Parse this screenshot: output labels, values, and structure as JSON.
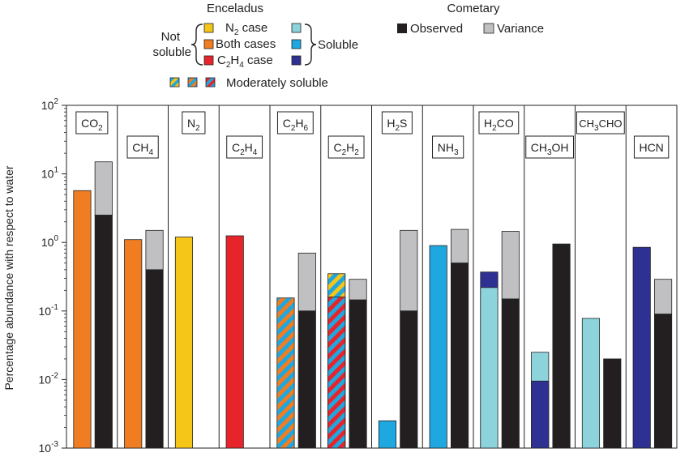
{
  "legend": {
    "enceladus_title": "Enceladus",
    "cometary_title": "Cometary",
    "not_soluble_1": "Not",
    "not_soluble_2": "soluble",
    "soluble": "Soluble",
    "n2_case": "N",
    "n2_case_sub": "2",
    "n2_case_tail": " case",
    "both_cases": "Both cases",
    "c2h4_case_a": "C",
    "c2h4_case_sub1": "2",
    "c2h4_case_b": "H",
    "c2h4_case_sub2": "4",
    "c2h4_case_tail": " case",
    "moderately_soluble": "Moderately soluble",
    "observed": "Observed",
    "variance": "Variance"
  },
  "colors": {
    "n2_case": "#f5c518",
    "both_cases": "#f07d22",
    "c2h4_case": "#e8242b",
    "soluble_n2": "#8dd3dc",
    "soluble_both": "#1fa7e0",
    "soluble_c2h4": "#2e3192",
    "observed": "#231f20",
    "variance": "#c0c0c2"
  },
  "chart_data": {
    "type": "bar",
    "ylabel": "Percentage abundance with respect to water",
    "yscale": "log",
    "ylim": [
      0.001,
      100
    ],
    "yticks": [
      {
        "value": 100,
        "base": "10",
        "exp": "2"
      },
      {
        "value": 10,
        "base": "10",
        "exp": "1"
      },
      {
        "value": 1,
        "base": "10",
        "exp": "0"
      },
      {
        "value": 0.1,
        "base": "10",
        "exp": "-1"
      },
      {
        "value": 0.01,
        "base": "10",
        "exp": "-2"
      },
      {
        "value": 0.001,
        "base": "10",
        "exp": "-3"
      }
    ],
    "species": [
      {
        "parts": [
          [
            "CO",
            ""
          ],
          [
            "2",
            "sub"
          ]
        ],
        "label_row": "top",
        "enceladus": [
          {
            "kind": "both_cases",
            "value": 5.7
          }
        ],
        "cometary": {
          "observed": 2.5,
          "variance_top": 15
        }
      },
      {
        "parts": [
          [
            "CH",
            ""
          ],
          [
            "4",
            "sub"
          ]
        ],
        "label_row": "low",
        "enceladus": [
          {
            "kind": "both_cases",
            "value": 1.1
          }
        ],
        "cometary": {
          "observed": 0.4,
          "variance_top": 1.5
        }
      },
      {
        "parts": [
          [
            "N",
            ""
          ],
          [
            "2",
            "sub"
          ]
        ],
        "label_row": "top",
        "enceladus": [
          {
            "kind": "n2_case",
            "value": 1.2
          }
        ],
        "cometary": null
      },
      {
        "parts": [
          [
            "C",
            ""
          ],
          [
            "2",
            "sub"
          ],
          [
            "H",
            ""
          ],
          [
            "4",
            "sub"
          ]
        ],
        "label_row": "low",
        "enceladus": [
          {
            "kind": "c2h4_case",
            "value": 1.25
          }
        ],
        "cometary": null
      },
      {
        "parts": [
          [
            "C",
            ""
          ],
          [
            "2",
            "sub"
          ],
          [
            "H",
            ""
          ],
          [
            "6",
            "sub"
          ]
        ],
        "label_row": "top",
        "enceladus": [
          {
            "kind": "moderate_both",
            "value": 0.155
          }
        ],
        "cometary": {
          "observed": 0.1,
          "variance_top": 0.7
        }
      },
      {
        "parts": [
          [
            "C",
            ""
          ],
          [
            "2",
            "sub"
          ],
          [
            "H",
            ""
          ],
          [
            "2",
            "sub"
          ]
        ],
        "label_row": "low",
        "enceladus": [
          {
            "kind": "moderate_c2h4",
            "value": 0.16
          },
          {
            "kind": "moderate_n2",
            "value": 0.35
          }
        ],
        "cometary": {
          "observed": 0.145,
          "variance_top": 0.29
        }
      },
      {
        "parts": [
          [
            "H",
            ""
          ],
          [
            "2",
            "sub"
          ],
          [
            "S",
            ""
          ]
        ],
        "label_row": "top",
        "enceladus": [
          {
            "kind": "soluble_both",
            "value": 0.0025
          }
        ],
        "cometary": {
          "observed": 0.1,
          "variance_top": 1.5
        }
      },
      {
        "parts": [
          [
            "NH",
            ""
          ],
          [
            "3",
            "sub"
          ]
        ],
        "label_row": "low",
        "enceladus": [
          {
            "kind": "soluble_both",
            "value": 0.9
          }
        ],
        "cometary": {
          "observed": 0.5,
          "variance_top": 1.55
        }
      },
      {
        "parts": [
          [
            "H",
            ""
          ],
          [
            "2",
            "sub"
          ],
          [
            "CO",
            ""
          ]
        ],
        "label_row": "top",
        "enceladus": [
          {
            "kind": "soluble_n2",
            "value": 0.22
          },
          {
            "kind": "soluble_c2h4",
            "value": 0.37
          }
        ],
        "cometary": {
          "observed": 0.15,
          "variance_top": 1.45
        }
      },
      {
        "parts": [
          [
            "CH",
            ""
          ],
          [
            "3",
            "sub"
          ],
          [
            "OH",
            ""
          ]
        ],
        "label_row": "low",
        "enceladus": [
          {
            "kind": "soluble_c2h4",
            "value": 0.0095
          },
          {
            "kind": "soluble_n2",
            "value": 0.025
          }
        ],
        "cometary": {
          "observed": 0.95,
          "variance_top": null
        }
      },
      {
        "parts": [
          [
            "CH",
            ""
          ],
          [
            "3",
            "sub"
          ],
          [
            "CHO",
            ""
          ]
        ],
        "label_row": "top",
        "enceladus": [
          {
            "kind": "soluble_n2",
            "value": 0.078
          }
        ],
        "cometary": {
          "observed": 0.02,
          "variance_top": null
        }
      },
      {
        "parts": [
          [
            "HCN",
            ""
          ]
        ],
        "label_row": "low",
        "enceladus": [
          {
            "kind": "soluble_c2h4",
            "value": 0.85
          }
        ],
        "cometary": {
          "observed": 0.09,
          "variance_top": 0.29
        }
      }
    ]
  }
}
